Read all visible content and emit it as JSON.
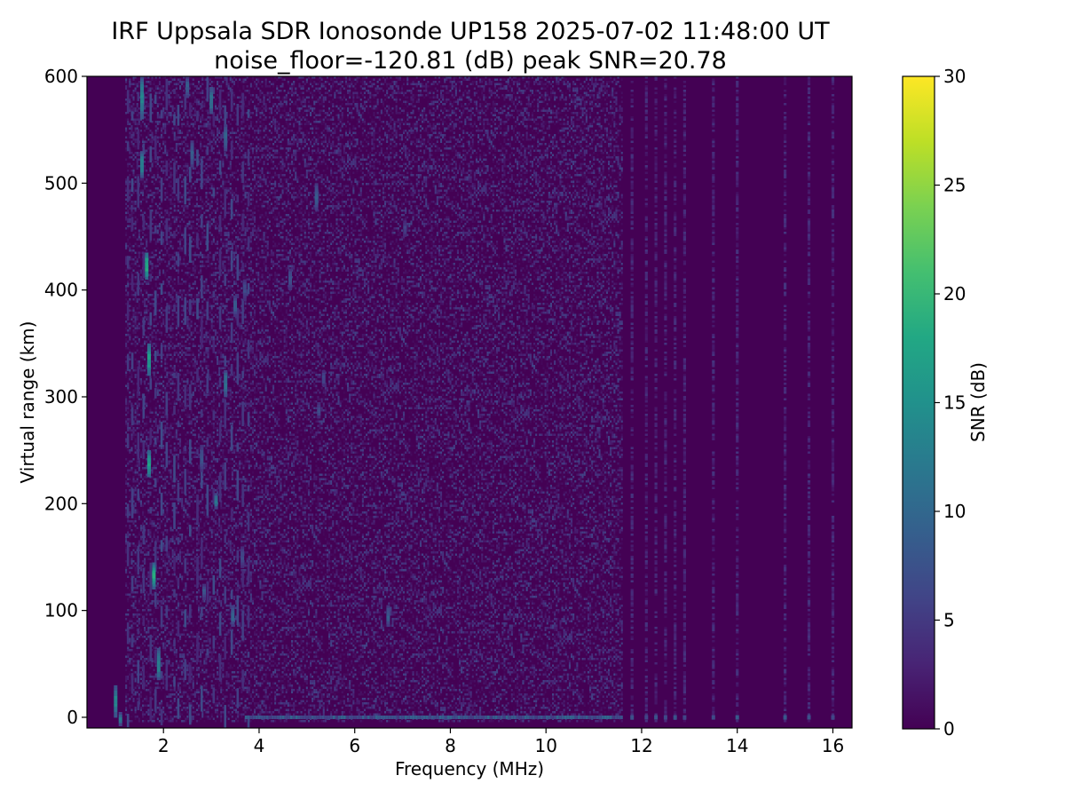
{
  "chart_data": {
    "type": "heatmap",
    "title": "IRF Uppsala SDR Ionosonde UP158 2025-07-02 11:48:00  UT",
    "subtitle": "noise_floor=-120.81 (dB) peak SNR=20.78",
    "xlabel": "Frequency (MHz)",
    "ylabel": "Virtual range (km)",
    "xlim": [
      0.4,
      16.4
    ],
    "ylim": [
      -10,
      600
    ],
    "x_ticks": [
      2,
      4,
      6,
      8,
      10,
      12,
      14,
      16
    ],
    "x_tick_labels": [
      "2",
      "4",
      "6",
      "8",
      "10",
      "12",
      "14",
      "16"
    ],
    "y_ticks": [
      0,
      100,
      200,
      300,
      400,
      500,
      600
    ],
    "y_tick_labels": [
      "0",
      "100",
      "200",
      "300",
      "400",
      "500",
      "600"
    ],
    "colorbar": {
      "label": "SNR (dB)",
      "range": [
        0,
        30
      ],
      "ticks": [
        0,
        5,
        10,
        15,
        20,
        25,
        30
      ],
      "tick_labels": [
        "0",
        "5",
        "10",
        "15",
        "20",
        "25",
        "30"
      ],
      "colormap": [
        "#440154",
        "#482475",
        "#414487",
        "#355f8d",
        "#2a788e",
        "#21918c",
        "#22a884",
        "#44bf70",
        "#7ad151",
        "#bddf26",
        "#fde725"
      ]
    },
    "noise_band_snr": [
      0,
      4
    ],
    "noise_band_x_range": [
      1.2,
      11.6
    ],
    "sparse_x_range": [
      11.6,
      16.4
    ],
    "sparse_channels_mhz": [
      11.8,
      12.1,
      12.3,
      12.5,
      12.7,
      12.9,
      13.5,
      14.0,
      15.0,
      15.5,
      16.0
    ],
    "ground_echo": {
      "range_km": 0,
      "x_range": [
        3.7,
        11.6
      ],
      "snr": 9
    },
    "echoes": [
      {
        "f": 1.55,
        "r": [
          560,
          600
        ],
        "snr": 14
      },
      {
        "f": 1.55,
        "r": [
          505,
          530
        ],
        "snr": 14
      },
      {
        "f": 1.65,
        "r": [
          410,
          435
        ],
        "snr": 19
      },
      {
        "f": 1.7,
        "r": [
          320,
          350
        ],
        "snr": 17
      },
      {
        "f": 1.7,
        "r": [
          225,
          250
        ],
        "snr": 17
      },
      {
        "f": 1.8,
        "r": [
          120,
          145
        ],
        "snr": 18
      },
      {
        "f": 1.9,
        "r": [
          35,
          65
        ],
        "snr": 14
      },
      {
        "f": 1.0,
        "r": [
          0,
          30
        ],
        "snr": 14
      },
      {
        "f": 1.1,
        "r": [
          -8,
          5
        ],
        "snr": 12
      },
      {
        "f": 2.5,
        "r": [
          580,
          600
        ],
        "snr": 9
      },
      {
        "f": 2.6,
        "r": [
          515,
          540
        ],
        "snr": 9
      },
      {
        "f": 2.8,
        "r": [
          230,
          255
        ],
        "snr": 8
      },
      {
        "f": 2.85,
        "r": [
          110,
          125
        ],
        "snr": 8
      },
      {
        "f": 3.0,
        "r": [
          565,
          590
        ],
        "snr": 12
      },
      {
        "f": 3.1,
        "r": [
          195,
          210
        ],
        "snr": 12
      },
      {
        "f": 3.3,
        "r": [
          530,
          555
        ],
        "snr": 10
      },
      {
        "f": 3.3,
        "r": [
          300,
          325
        ],
        "snr": 12
      },
      {
        "f": 3.45,
        "r": [
          85,
          105
        ],
        "snr": 10
      },
      {
        "f": 3.5,
        "r": [
          375,
          395
        ],
        "snr": 9
      },
      {
        "f": 3.7,
        "r": [
          390,
          410
        ],
        "snr": 7
      },
      {
        "f": 3.65,
        "r": [
          140,
          160
        ],
        "snr": 7
      },
      {
        "f": 4.65,
        "r": [
          400,
          420
        ],
        "snr": 8
      },
      {
        "f": 5.2,
        "r": [
          475,
          500
        ],
        "snr": 9
      },
      {
        "f": 5.25,
        "r": [
          280,
          295
        ],
        "snr": 7
      },
      {
        "f": 5.35,
        "r": [
          310,
          325
        ],
        "snr": 7
      },
      {
        "f": 6.7,
        "r": [
          85,
          105
        ],
        "snr": 9
      },
      {
        "f": 7.05,
        "r": [
          450,
          465
        ],
        "snr": 6
      }
    ]
  }
}
